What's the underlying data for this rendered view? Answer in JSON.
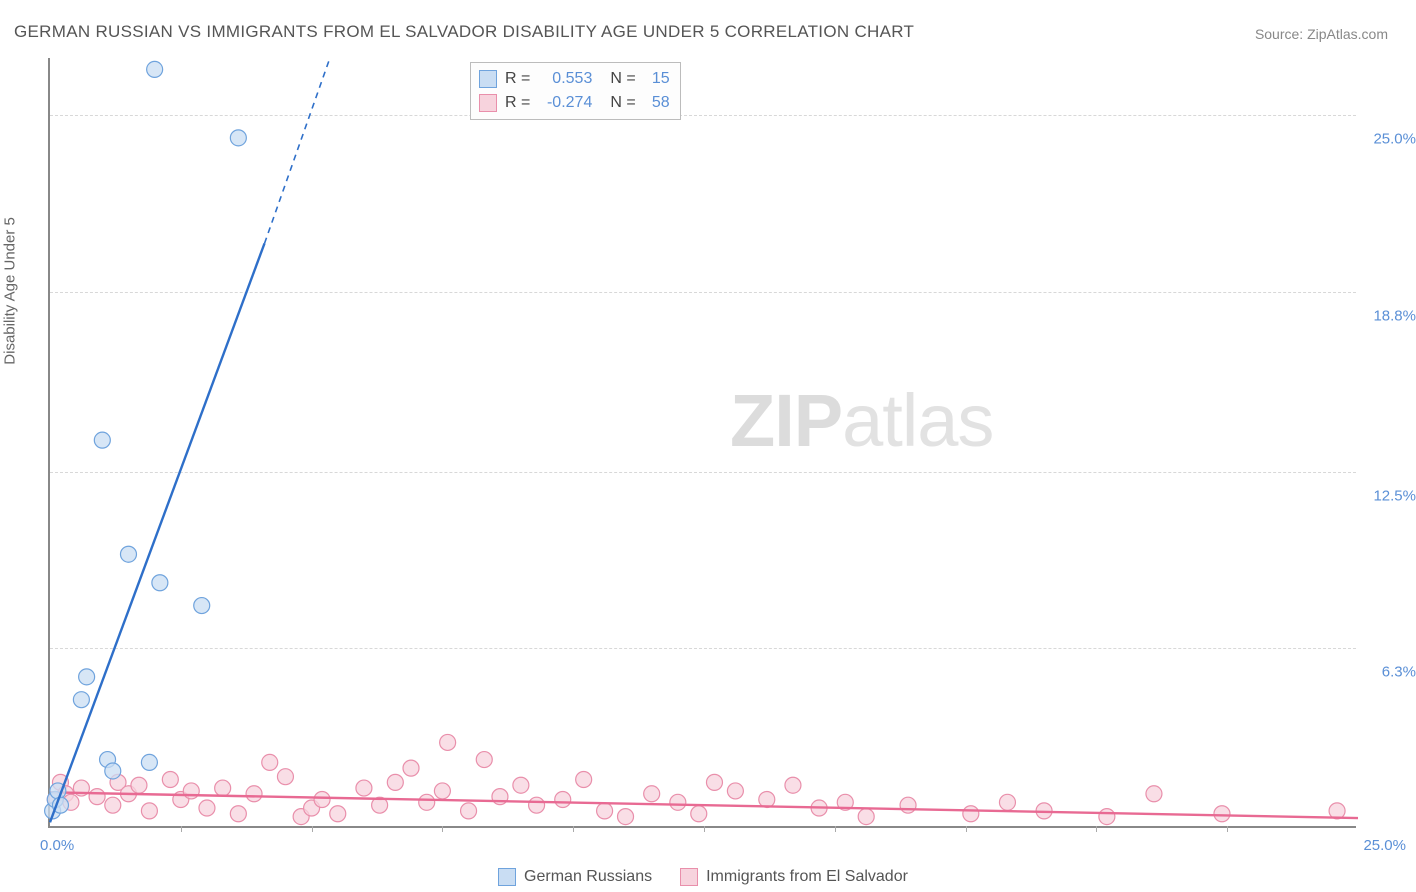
{
  "title": "GERMAN RUSSIAN VS IMMIGRANTS FROM EL SALVADOR DISABILITY AGE UNDER 5 CORRELATION CHART",
  "source": "Source: ZipAtlas.com",
  "y_axis_label": "Disability Age Under 5",
  "watermark": {
    "bold": "ZIP",
    "rest": "atlas"
  },
  "chart": {
    "type": "scatter-with-regression",
    "background_color": "#ffffff",
    "grid_color": "#d8d8d8",
    "axis_color": "#888888",
    "text_color": "#666666",
    "tick_label_color": "#5a8fd6",
    "xlim": [
      0,
      25
    ],
    "ylim": [
      0,
      27
    ],
    "x_ticks": {
      "min_label": "0.0%",
      "max_label": "25.0%",
      "minor_step": 2.5
    },
    "y_ticks": [
      {
        "value": 6.3,
        "label": "6.3%"
      },
      {
        "value": 12.5,
        "label": "12.5%"
      },
      {
        "value": 18.8,
        "label": "18.8%"
      },
      {
        "value": 25.0,
        "label": "25.0%"
      }
    ],
    "marker_radius": 8,
    "marker_stroke_width": 1.2,
    "line_width": 2.4
  },
  "series": {
    "a": {
      "label": "German Russians",
      "fill": "#c9ddf3",
      "stroke": "#6fa3dd",
      "line_color": "#2e6fc9",
      "R_label": "R =",
      "R": "0.553",
      "N_label": "N =",
      "N": "15",
      "regression": {
        "x1": 0,
        "y1": 0.2,
        "x2": 4.1,
        "y2": 20.5,
        "dash_extend_to": {
          "x": 5.35,
          "y": 27
        }
      },
      "points": [
        {
          "x": 0.05,
          "y": 0.6
        },
        {
          "x": 0.1,
          "y": 1.0
        },
        {
          "x": 0.15,
          "y": 1.3
        },
        {
          "x": 0.2,
          "y": 0.8
        },
        {
          "x": 0.6,
          "y": 4.5
        },
        {
          "x": 0.7,
          "y": 5.3
        },
        {
          "x": 1.1,
          "y": 2.4
        },
        {
          "x": 1.2,
          "y": 2.0
        },
        {
          "x": 1.5,
          "y": 9.6
        },
        {
          "x": 1.9,
          "y": 2.3
        },
        {
          "x": 2.1,
          "y": 8.6
        },
        {
          "x": 2.9,
          "y": 7.8
        },
        {
          "x": 1.0,
          "y": 13.6
        },
        {
          "x": 2.0,
          "y": 26.6
        },
        {
          "x": 3.6,
          "y": 24.2
        }
      ]
    },
    "b": {
      "label": "Immigrants from El Salvador",
      "fill": "#f7d3dd",
      "stroke": "#e98fab",
      "line_color": "#e86a93",
      "R_label": "R =",
      "R": "-0.274",
      "N_label": "N =",
      "N": "58",
      "regression": {
        "x1": 0,
        "y1": 1.25,
        "x2": 25,
        "y2": 0.35
      },
      "points": [
        {
          "x": 0.1,
          "y": 1.0
        },
        {
          "x": 0.2,
          "y": 1.6
        },
        {
          "x": 0.3,
          "y": 1.2
        },
        {
          "x": 0.4,
          "y": 0.9
        },
        {
          "x": 0.6,
          "y": 1.4
        },
        {
          "x": 0.9,
          "y": 1.1
        },
        {
          "x": 1.2,
          "y": 0.8
        },
        {
          "x": 1.3,
          "y": 1.6
        },
        {
          "x": 1.5,
          "y": 1.2
        },
        {
          "x": 1.7,
          "y": 1.5
        },
        {
          "x": 1.9,
          "y": 0.6
        },
        {
          "x": 2.3,
          "y": 1.7
        },
        {
          "x": 2.5,
          "y": 1.0
        },
        {
          "x": 2.7,
          "y": 1.3
        },
        {
          "x": 3.0,
          "y": 0.7
        },
        {
          "x": 3.3,
          "y": 1.4
        },
        {
          "x": 3.6,
          "y": 0.5
        },
        {
          "x": 3.9,
          "y": 1.2
        },
        {
          "x": 4.2,
          "y": 2.3
        },
        {
          "x": 4.5,
          "y": 1.8
        },
        {
          "x": 4.8,
          "y": 0.4
        },
        {
          "x": 5.0,
          "y": 0.7
        },
        {
          "x": 5.2,
          "y": 1.0
        },
        {
          "x": 5.5,
          "y": 0.5
        },
        {
          "x": 6.0,
          "y": 1.4
        },
        {
          "x": 6.3,
          "y": 0.8
        },
        {
          "x": 6.6,
          "y": 1.6
        },
        {
          "x": 6.9,
          "y": 2.1
        },
        {
          "x": 7.2,
          "y": 0.9
        },
        {
          "x": 7.5,
          "y": 1.3
        },
        {
          "x": 7.6,
          "y": 3.0
        },
        {
          "x": 8.0,
          "y": 0.6
        },
        {
          "x": 8.3,
          "y": 2.4
        },
        {
          "x": 8.6,
          "y": 1.1
        },
        {
          "x": 9.0,
          "y": 1.5
        },
        {
          "x": 9.3,
          "y": 0.8
        },
        {
          "x": 9.8,
          "y": 1.0
        },
        {
          "x": 10.2,
          "y": 1.7
        },
        {
          "x": 10.6,
          "y": 0.6
        },
        {
          "x": 11.0,
          "y": 0.4
        },
        {
          "x": 11.5,
          "y": 1.2
        },
        {
          "x": 12.0,
          "y": 0.9
        },
        {
          "x": 12.4,
          "y": 0.5
        },
        {
          "x": 12.7,
          "y": 1.6
        },
        {
          "x": 13.1,
          "y": 1.3
        },
        {
          "x": 13.7,
          "y": 1.0
        },
        {
          "x": 14.2,
          "y": 1.5
        },
        {
          "x": 14.7,
          "y": 0.7
        },
        {
          "x": 15.2,
          "y": 0.9
        },
        {
          "x": 15.6,
          "y": 0.4
        },
        {
          "x": 16.4,
          "y": 0.8
        },
        {
          "x": 17.6,
          "y": 0.5
        },
        {
          "x": 18.3,
          "y": 0.9
        },
        {
          "x": 19.0,
          "y": 0.6
        },
        {
          "x": 20.2,
          "y": 0.4
        },
        {
          "x": 21.1,
          "y": 1.2
        },
        {
          "x": 22.4,
          "y": 0.5
        },
        {
          "x": 24.6,
          "y": 0.6
        }
      ]
    }
  },
  "bottom_legend": {
    "a": "German Russians",
    "b": "Immigrants from El Salvador"
  }
}
